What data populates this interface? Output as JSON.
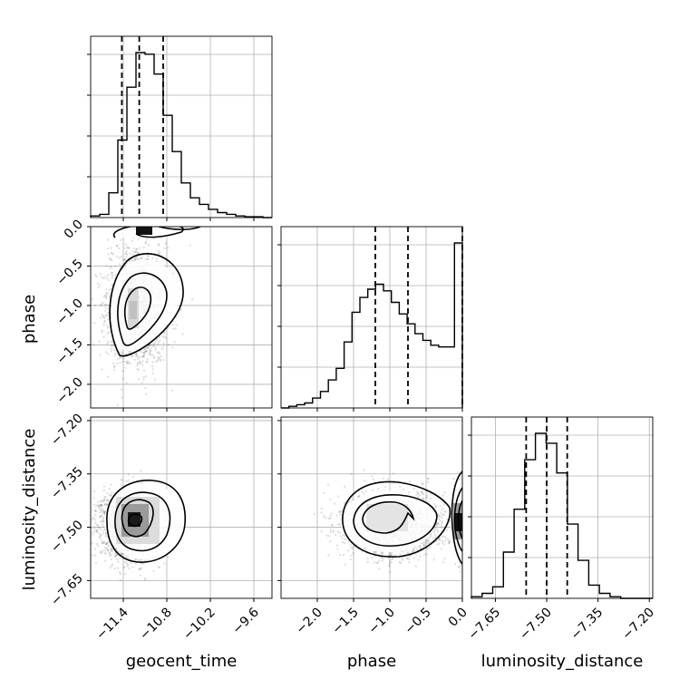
{
  "chart_data": {
    "type": "corner",
    "grid": true,
    "parameters": [
      {
        "name": "geocent_time",
        "xlim": [
          -11.85,
          -9.35
        ],
        "ticks": [
          -11.4,
          -10.8,
          -10.2,
          -9.6
        ],
        "tick_labels": [
          "−11.4",
          "−10.8",
          "−10.2",
          "−9.6"
        ],
        "quantiles": [
          -11.42,
          -11.18,
          -10.85
        ]
      },
      {
        "name": "phase",
        "xlim": [
          -2.5,
          0.0
        ],
        "ticks": [
          -2.0,
          -1.5,
          -1.0,
          -0.5,
          0.0
        ],
        "tick_labels": [
          "−2.0",
          "−1.5",
          "−1.0",
          "−0.5",
          "0.0"
        ],
        "quantiles": [
          -1.2,
          -0.75,
          0.0
        ]
      },
      {
        "name": "luminosity_distance",
        "xlim": [
          -7.72,
          -7.19
        ],
        "ticks": [
          -7.65,
          -7.5,
          -7.35,
          -7.2
        ],
        "tick_labels": [
          "−7.65",
          "−7.50",
          "−7.35",
          "−7.20"
        ],
        "quantiles": [
          -7.56,
          -7.5,
          -7.44
        ]
      }
    ],
    "row_labels": [
      "phase",
      "luminosity_distance"
    ],
    "row_ticks": [
      {
        "name": "phase",
        "ylim": [
          -2.3,
          0.0
        ],
        "ticks": [
          0.0,
          -0.5,
          -1.0,
          -1.5,
          -2.0
        ],
        "tick_labels": [
          "0.0",
          "−0.5",
          "−1.0",
          "−1.5",
          "−2.0"
        ]
      },
      {
        "name": "luminosity_distance",
        "ylim": [
          -7.7,
          -7.19
        ],
        "ticks": [
          -7.2,
          -7.35,
          -7.5,
          -7.65
        ],
        "tick_labels": [
          "−7.20",
          "−7.35",
          "−7.50",
          "−7.65"
        ]
      }
    ],
    "histograms": [
      {
        "param": "geocent_time",
        "values": [
          0.01,
          0.02,
          0.15,
          0.47,
          0.79,
          1.0,
          0.99,
          0.87,
          0.62,
          0.4,
          0.21,
          0.12,
          0.08,
          0.05,
          0.03,
          0.02,
          0.01,
          0.005,
          0.005,
          0.0
        ]
      },
      {
        "param": "phase",
        "values": [
          0.0,
          0.01,
          0.02,
          0.03,
          0.06,
          0.1,
          0.17,
          0.24,
          0.4,
          0.58,
          0.67,
          0.72,
          0.75,
          0.71,
          0.64,
          0.57,
          0.51,
          0.45,
          0.41,
          0.38,
          0.37,
          0.37,
          1.0
        ]
      },
      {
        "param": "luminosity_distance",
        "values": [
          0.01,
          0.03,
          0.07,
          0.28,
          0.54,
          0.84,
          1.0,
          0.94,
          0.76,
          0.45,
          0.23,
          0.08,
          0.03,
          0.01,
          0.0,
          0.0,
          0.0
        ]
      }
    ]
  }
}
